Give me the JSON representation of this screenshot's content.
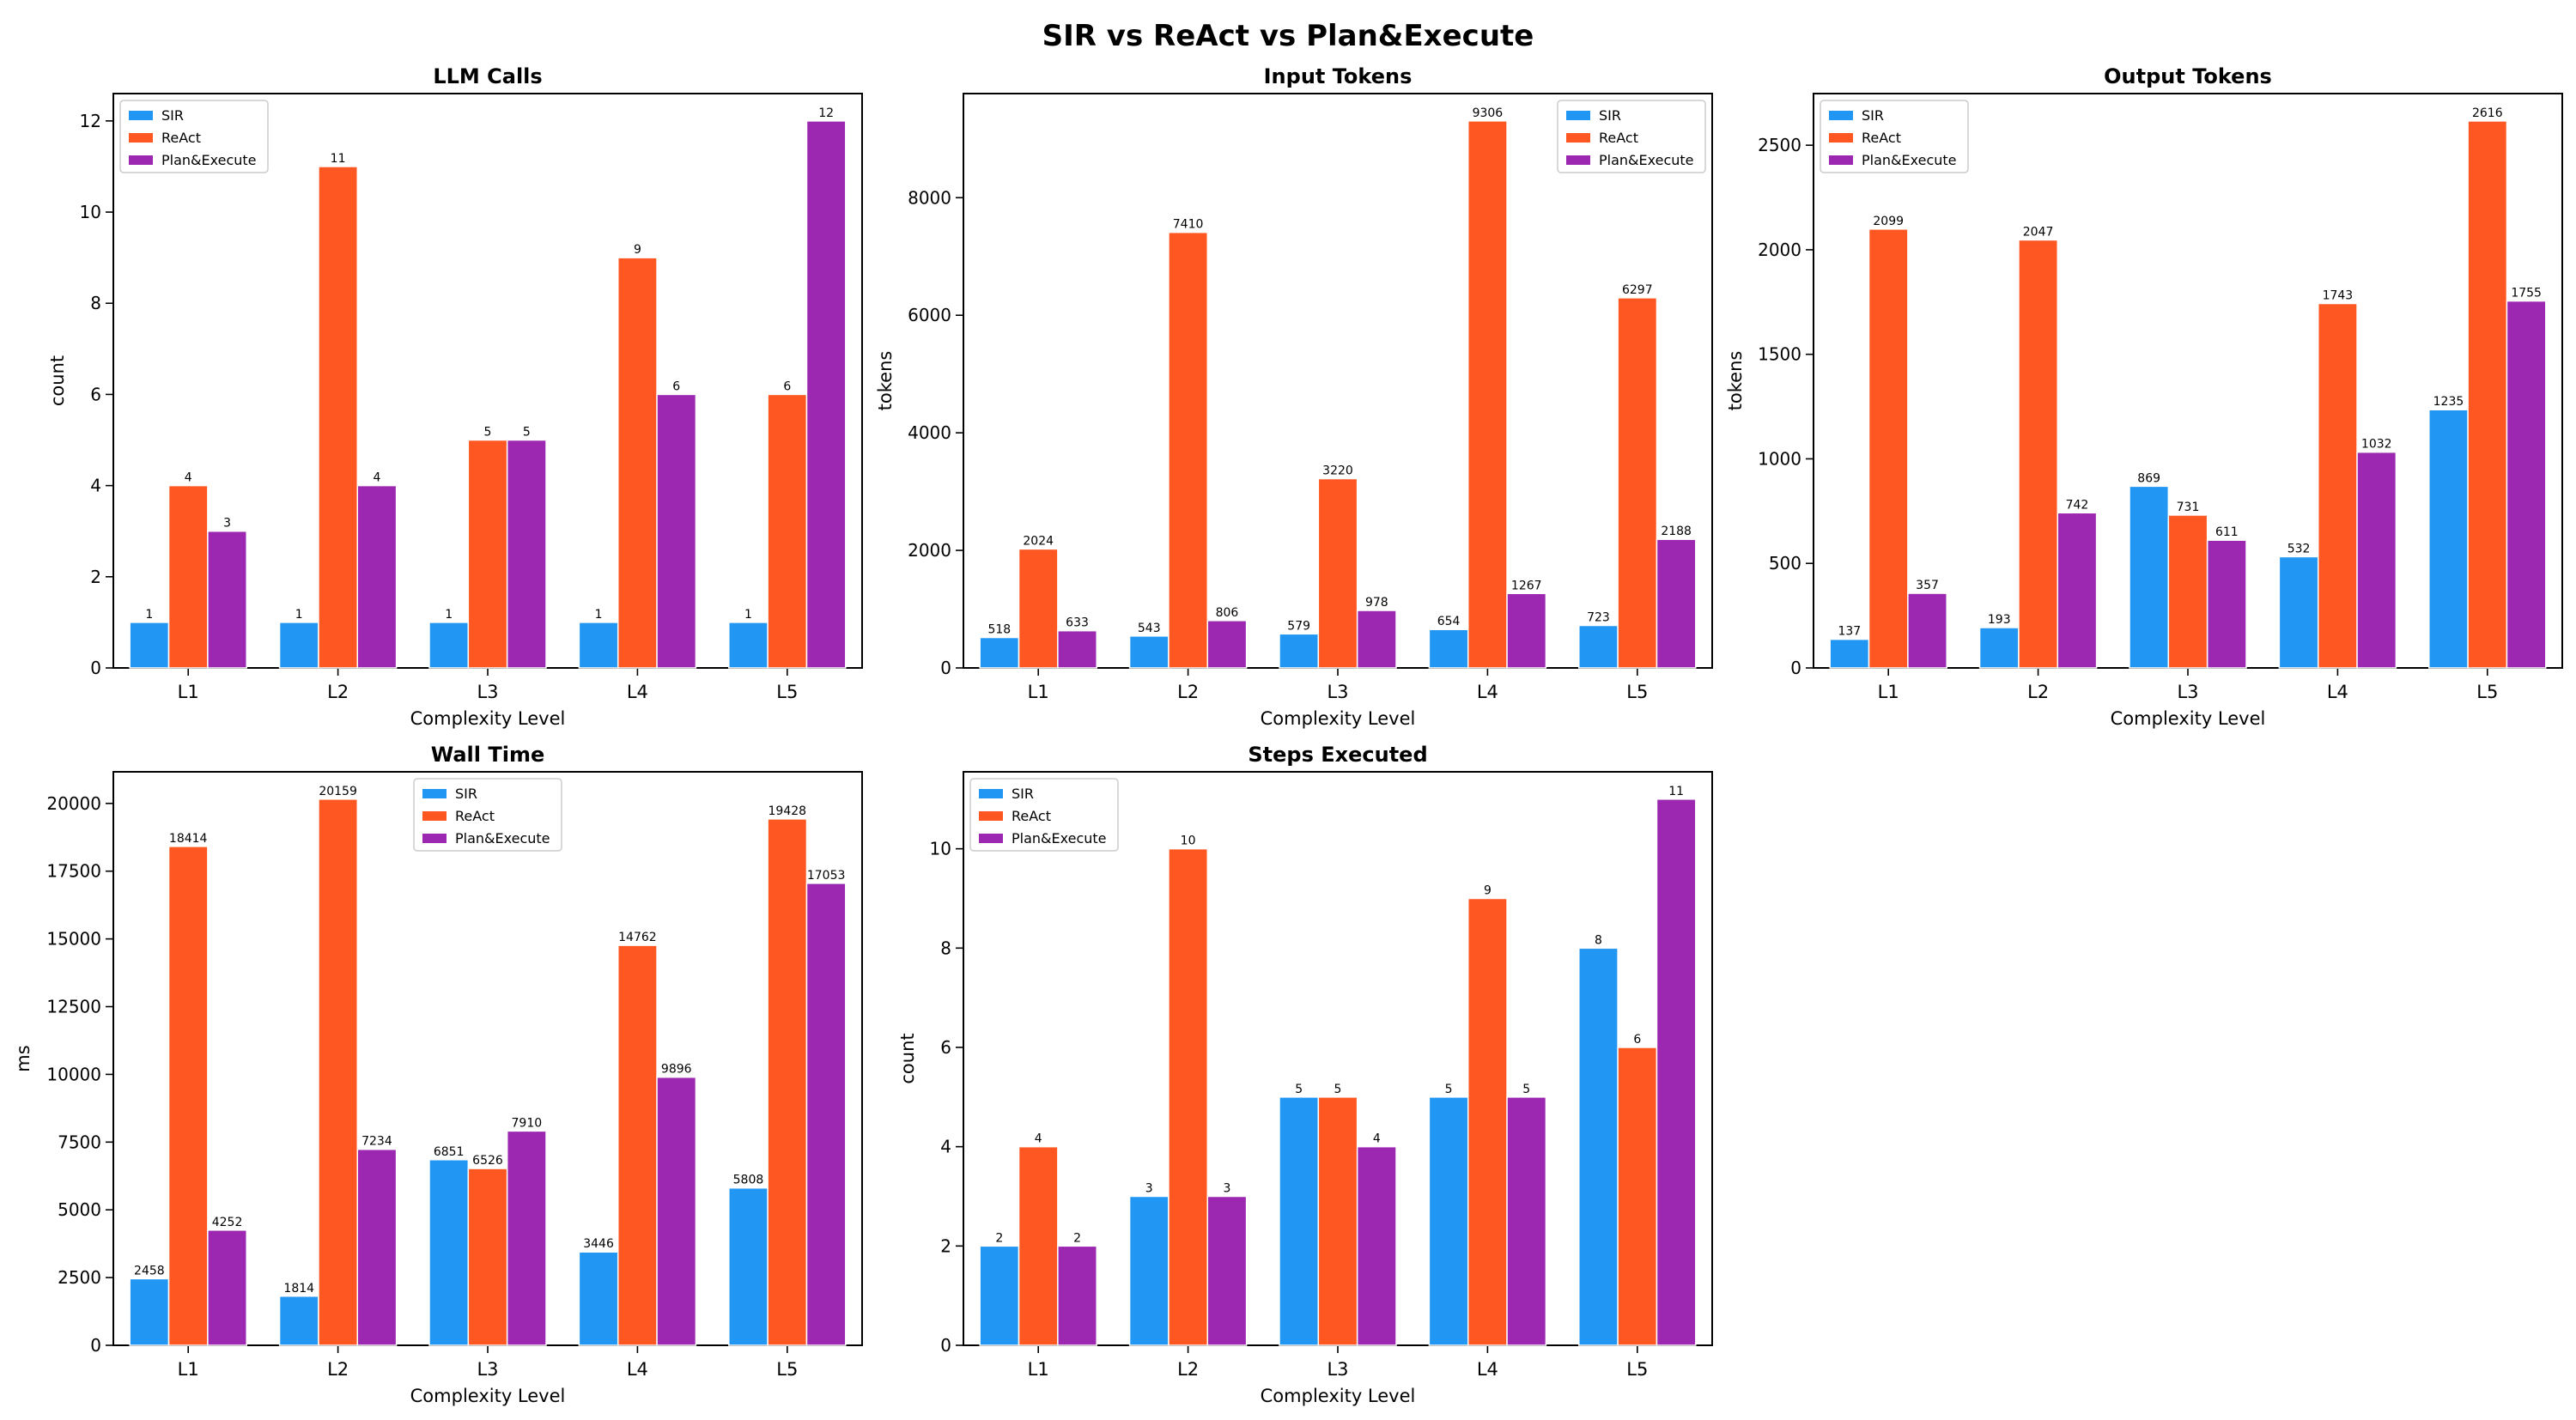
{
  "figure_title": "SIR vs ReAct vs Plan&Execute",
  "colors": {
    "SIR": "#2196F3",
    "ReAct": "#FF5722",
    "Plan&Execute": "#9C27B0"
  },
  "chart_data": [
    {
      "type": "bar",
      "title": "LLM Calls",
      "xlabel": "Complexity Level",
      "ylabel": "count",
      "categories": [
        "L1",
        "L2",
        "L3",
        "L4",
        "L5"
      ],
      "ylim": [
        0,
        12.6
      ],
      "yticks": [
        0,
        2,
        4,
        6,
        8,
        10,
        12
      ],
      "legend_position": "top-left",
      "series": [
        {
          "name": "SIR",
          "values": [
            1,
            1,
            1,
            1,
            1
          ]
        },
        {
          "name": "ReAct",
          "values": [
            4,
            11,
            5,
            9,
            6
          ]
        },
        {
          "name": "Plan&Execute",
          "values": [
            3,
            4,
            5,
            6,
            12
          ]
        }
      ]
    },
    {
      "type": "bar",
      "title": "Input Tokens",
      "xlabel": "Complexity Level",
      "ylabel": "tokens",
      "categories": [
        "L1",
        "L2",
        "L3",
        "L4",
        "L5"
      ],
      "ylim": [
        0,
        9771
      ],
      "yticks": [
        0,
        2000,
        4000,
        6000,
        8000
      ],
      "legend_position": "top-right",
      "series": [
        {
          "name": "SIR",
          "values": [
            518,
            543,
            579,
            654,
            723
          ]
        },
        {
          "name": "ReAct",
          "values": [
            2024,
            7410,
            3220,
            9306,
            6297
          ]
        },
        {
          "name": "Plan&Execute",
          "values": [
            633,
            806,
            978,
            1267,
            2188
          ]
        }
      ]
    },
    {
      "type": "bar",
      "title": "Output Tokens",
      "xlabel": "Complexity Level",
      "ylabel": "tokens",
      "categories": [
        "L1",
        "L2",
        "L3",
        "L4",
        "L5"
      ],
      "ylim": [
        0,
        2747
      ],
      "yticks": [
        0,
        500,
        1000,
        1500,
        2000,
        2500
      ],
      "legend_position": "top-left",
      "series": [
        {
          "name": "SIR",
          "values": [
            137,
            193,
            869,
            532,
            1235
          ]
        },
        {
          "name": "ReAct",
          "values": [
            2099,
            2047,
            731,
            1743,
            2616
          ]
        },
        {
          "name": "Plan&Execute",
          "values": [
            357,
            742,
            611,
            1032,
            1755
          ]
        }
      ]
    },
    {
      "type": "bar",
      "title": "Wall Time",
      "xlabel": "Complexity Level",
      "ylabel": "ms",
      "categories": [
        "L1",
        "L2",
        "L3",
        "L4",
        "L5"
      ],
      "ylim": [
        0,
        21167
      ],
      "yticks": [
        0,
        2500,
        5000,
        7500,
        10000,
        12500,
        15000,
        17500,
        20000
      ],
      "legend_position": "top-center",
      "series": [
        {
          "name": "SIR",
          "values": [
            2458,
            1814,
            6851,
            3446,
            5808
          ]
        },
        {
          "name": "ReAct",
          "values": [
            18414,
            20159,
            6526,
            14762,
            19428
          ]
        },
        {
          "name": "Plan&Execute",
          "values": [
            4252,
            7234,
            7910,
            9896,
            17053
          ]
        }
      ]
    },
    {
      "type": "bar",
      "title": "Steps Executed",
      "xlabel": "Complexity Level",
      "ylabel": "count",
      "categories": [
        "L1",
        "L2",
        "L3",
        "L4",
        "L5"
      ],
      "ylim": [
        0,
        11.55
      ],
      "yticks": [
        0,
        2,
        4,
        6,
        8,
        10
      ],
      "legend_position": "top-left",
      "series": [
        {
          "name": "SIR",
          "values": [
            2,
            3,
            5,
            5,
            8
          ]
        },
        {
          "name": "ReAct",
          "values": [
            4,
            10,
            5,
            9,
            6
          ]
        },
        {
          "name": "Plan&Execute",
          "values": [
            2,
            3,
            4,
            5,
            11
          ]
        }
      ]
    }
  ]
}
